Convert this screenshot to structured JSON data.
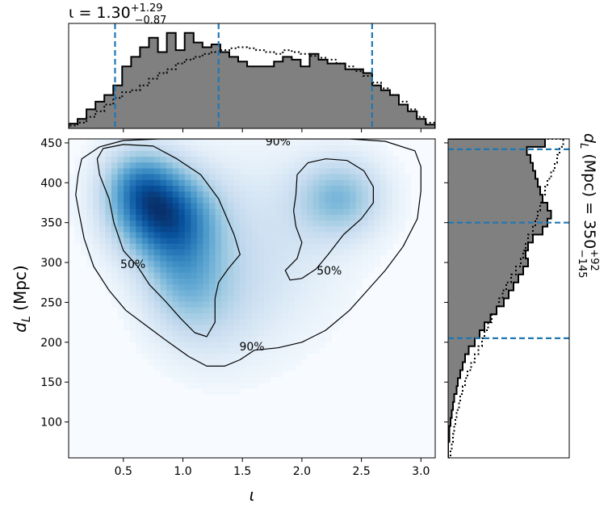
{
  "titles": {
    "top_prefix": "ι = 1.30",
    "top_sup": "+1.29",
    "top_sub": "−0.87",
    "right_prefix": "d",
    "right_sub_l": "L",
    "right_mid": " (Mpc) = 350",
    "right_sup": "+92",
    "right_sub": "−145"
  },
  "colors": {
    "density": "#08519c",
    "hist_fill": "#808080",
    "quantile_line": "#1f77b4"
  },
  "chart_data": {
    "type": "heatmap",
    "xlabel": "ι",
    "ylabel_main": "d",
    "ylabel_sub": "L",
    "ylabel_unit": " (Mpc)",
    "xlim": [
      0.04,
      3.12
    ],
    "ylim": [
      55,
      455
    ],
    "xticks": [
      0.5,
      1.0,
      1.5,
      2.0,
      2.5,
      3.0
    ],
    "yticks": [
      100,
      150,
      200,
      250,
      300,
      350,
      400,
      450
    ],
    "density_blobs": [
      {
        "x": 0.85,
        "y": 360,
        "sx": 0.3,
        "sy": 42,
        "w": 1.0
      },
      {
        "x": 1.0,
        "y": 280,
        "sx": 0.25,
        "sy": 50,
        "w": 0.45
      },
      {
        "x": 0.62,
        "y": 400,
        "sx": 0.22,
        "sy": 35,
        "w": 0.55
      },
      {
        "x": 2.32,
        "y": 382,
        "sx": 0.26,
        "sy": 35,
        "w": 0.55
      },
      {
        "x": 1.7,
        "y": 320,
        "sx": 0.45,
        "sy": 80,
        "w": 0.22
      },
      {
        "x": 1.3,
        "y": 245,
        "sx": 0.3,
        "sy": 55,
        "w": 0.18
      }
    ],
    "contours": [
      {
        "label": "90%",
        "label_positions": [
          [
            1.8,
            452
          ],
          [
            1.58,
            195
          ]
        ],
        "points": [
          [
            0.12,
            410
          ],
          [
            0.15,
            430
          ],
          [
            0.3,
            445
          ],
          [
            0.5,
            453
          ],
          [
            0.8,
            455
          ],
          [
            1.2,
            455
          ],
          [
            1.6,
            455
          ],
          [
            2.0,
            455
          ],
          [
            2.4,
            455
          ],
          [
            2.7,
            452
          ],
          [
            2.95,
            440
          ],
          [
            3.0,
            420
          ],
          [
            3.0,
            390
          ],
          [
            2.97,
            355
          ],
          [
            2.85,
            320
          ],
          [
            2.7,
            290
          ],
          [
            2.55,
            265
          ],
          [
            2.4,
            240
          ],
          [
            2.2,
            215
          ],
          [
            2.0,
            200
          ],
          [
            1.8,
            193
          ],
          [
            1.6,
            190
          ],
          [
            1.48,
            178
          ],
          [
            1.35,
            170
          ],
          [
            1.2,
            170
          ],
          [
            1.05,
            182
          ],
          [
            0.88,
            200
          ],
          [
            0.7,
            220
          ],
          [
            0.52,
            240
          ],
          [
            0.38,
            265
          ],
          [
            0.25,
            295
          ],
          [
            0.17,
            330
          ],
          [
            0.13,
            360
          ],
          [
            0.1,
            385
          ],
          [
            0.12,
            410
          ]
        ]
      },
      {
        "label": "50%",
        "label_positions": [
          [
            0.58,
            298
          ]
        ],
        "points": [
          [
            0.3,
            410
          ],
          [
            0.28,
            430
          ],
          [
            0.33,
            443
          ],
          [
            0.5,
            448
          ],
          [
            0.75,
            446
          ],
          [
            0.95,
            430
          ],
          [
            1.15,
            410
          ],
          [
            1.3,
            380
          ],
          [
            1.43,
            335
          ],
          [
            1.48,
            310
          ],
          [
            1.38,
            292
          ],
          [
            1.3,
            275
          ],
          [
            1.27,
            255
          ],
          [
            1.27,
            225
          ],
          [
            1.2,
            207
          ],
          [
            1.1,
            212
          ],
          [
            0.98,
            230
          ],
          [
            0.85,
            252
          ],
          [
            0.72,
            272
          ],
          [
            0.62,
            295
          ],
          [
            0.5,
            315
          ],
          [
            0.42,
            350
          ],
          [
            0.38,
            380
          ],
          [
            0.3,
            410
          ]
        ]
      },
      {
        "label": "50%",
        "label_positions": [
          [
            2.23,
            290
          ]
        ],
        "points": [
          [
            1.95,
            385
          ],
          [
            1.96,
            410
          ],
          [
            2.05,
            425
          ],
          [
            2.2,
            430
          ],
          [
            2.38,
            428
          ],
          [
            2.52,
            415
          ],
          [
            2.6,
            395
          ],
          [
            2.6,
            375
          ],
          [
            2.5,
            355
          ],
          [
            2.35,
            335
          ],
          [
            2.22,
            310
          ],
          [
            2.12,
            292
          ],
          [
            2.0,
            280
          ],
          [
            1.9,
            278
          ],
          [
            1.86,
            290
          ],
          [
            1.96,
            305
          ],
          [
            2.0,
            325
          ],
          [
            1.95,
            345
          ],
          [
            1.93,
            365
          ],
          [
            1.95,
            385
          ]
        ]
      }
    ],
    "top_hist": {
      "bin_edges": [
        0.04,
        0.115,
        0.19,
        0.265,
        0.34,
        0.415,
        0.49,
        0.565,
        0.64,
        0.715,
        0.79,
        0.865,
        0.94,
        1.015,
        1.09,
        1.165,
        1.24,
        1.315,
        1.39,
        1.465,
        1.54,
        1.615,
        1.69,
        1.765,
        1.84,
        1.915,
        1.99,
        2.065,
        2.14,
        2.215,
        2.29,
        2.365,
        2.44,
        2.515,
        2.59,
        2.665,
        2.74,
        2.815,
        2.89,
        2.965,
        3.04,
        3.12
      ],
      "counts": [
        5,
        10,
        20,
        28,
        35,
        45,
        65,
        75,
        85,
        95,
        80,
        100,
        82,
        100,
        90,
        85,
        88,
        80,
        75,
        70,
        65,
        65,
        65,
        70,
        75,
        72,
        65,
        78,
        72,
        68,
        68,
        62,
        62,
        58,
        45,
        40,
        35,
        25,
        18,
        10,
        4
      ],
      "prior": [
        3,
        6,
        12,
        18,
        25,
        32,
        38,
        40,
        45,
        52,
        58,
        62,
        68,
        72,
        75,
        78,
        80,
        82,
        84,
        85,
        84,
        82,
        80,
        78,
        82,
        80,
        78,
        76,
        74,
        72,
        68,
        65,
        60,
        55,
        48,
        42,
        35,
        28,
        20,
        12,
        6
      ],
      "ymax": 110,
      "quantiles": [
        0.43,
        1.3,
        2.59
      ]
    },
    "right_hist": {
      "bin_edges": [
        55,
        65,
        75,
        85,
        95,
        105,
        115,
        125,
        135,
        145,
        155,
        165,
        175,
        185,
        195,
        205,
        215,
        225,
        235,
        245,
        255,
        265,
        275,
        285,
        295,
        305,
        315,
        325,
        335,
        345,
        355,
        365,
        375,
        385,
        395,
        405,
        415,
        425,
        435,
        445,
        455
      ],
      "counts": [
        0,
        0,
        1,
        1,
        2,
        3,
        4,
        5,
        7,
        8,
        10,
        12,
        14,
        17,
        22,
        26,
        30,
        35,
        40,
        46,
        50,
        54,
        58,
        62,
        66,
        64,
        66,
        70,
        78,
        82,
        85,
        82,
        78,
        76,
        74,
        72,
        70,
        68,
        65,
        80
      ],
      "prior": [
        2,
        3,
        4,
        5,
        6,
        7,
        9,
        10,
        12,
        14,
        16,
        19,
        22,
        25,
        28,
        30,
        33,
        36,
        40,
        42,
        45,
        48,
        52,
        56,
        60,
        62,
        64,
        66,
        70,
        72,
        74,
        76,
        78,
        80,
        82,
        85,
        88,
        90,
        92,
        95
      ],
      "xmax": 100,
      "quantiles": [
        205,
        350,
        442
      ]
    }
  }
}
